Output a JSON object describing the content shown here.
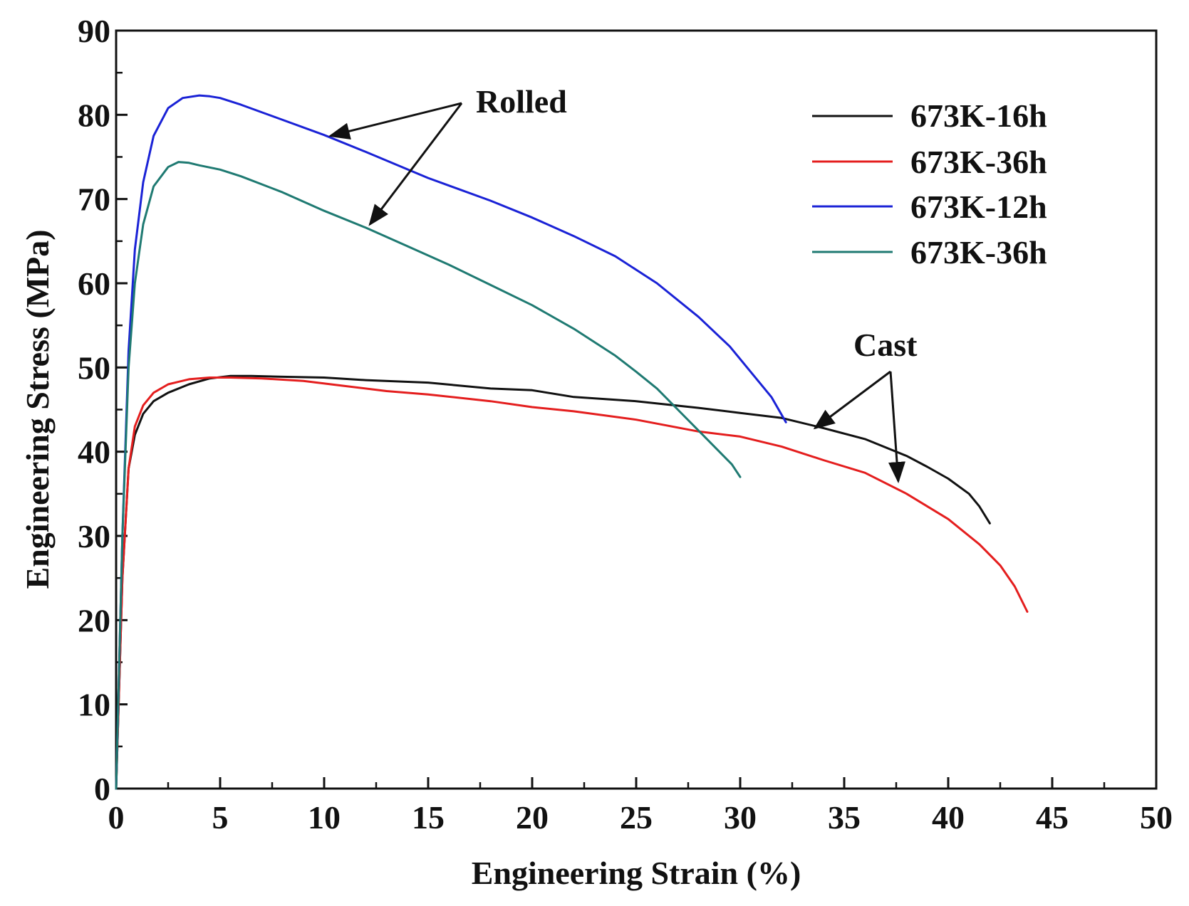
{
  "chart_data": {
    "type": "line",
    "xlabel": "Engineering Strain (%)",
    "ylabel": "Engineering Stress (MPa)",
    "xlim": [
      0,
      50
    ],
    "ylim": [
      0,
      90
    ],
    "xticks": [
      0,
      5,
      10,
      15,
      20,
      25,
      30,
      35,
      40,
      45,
      50
    ],
    "yticks": [
      0,
      10,
      20,
      30,
      40,
      50,
      60,
      70,
      80,
      90
    ],
    "grid": false,
    "legend_position": "top-right",
    "series": [
      {
        "name": "673K-16h",
        "color": "#111111",
        "group": "Cast",
        "x": [
          0,
          0.3,
          0.6,
          0.9,
          1.3,
          1.8,
          2.5,
          3.5,
          4.5,
          5.5,
          6.5,
          8,
          10,
          12,
          15,
          18,
          20,
          22,
          25,
          28,
          30,
          32,
          34,
          36,
          38,
          39,
          40,
          41,
          41.5,
          42
        ],
        "y": [
          0,
          25,
          38,
          42,
          44.5,
          46,
          47,
          48,
          48.7,
          49,
          49,
          48.9,
          48.8,
          48.5,
          48.2,
          47.5,
          47.3,
          46.5,
          46,
          45.2,
          44.6,
          44,
          42.8,
          41.5,
          39.5,
          38.2,
          36.8,
          35,
          33.5,
          31.5
        ]
      },
      {
        "name": "673K-36h",
        "color": "#e41e1e",
        "group": "Cast",
        "x": [
          0,
          0.3,
          0.6,
          0.9,
          1.3,
          1.8,
          2.5,
          3.5,
          4.5,
          5.5,
          7,
          9,
          11,
          13,
          15,
          18,
          20,
          22,
          25,
          28,
          30,
          32,
          34,
          36,
          38,
          40,
          41.5,
          42.5,
          43.2,
          43.8
        ],
        "y": [
          0,
          25,
          38,
          43,
          45.5,
          47,
          48,
          48.6,
          48.8,
          48.8,
          48.7,
          48.4,
          47.8,
          47.2,
          46.8,
          46,
          45.3,
          44.8,
          43.8,
          42.4,
          41.8,
          40.6,
          39,
          37.5,
          35,
          32,
          29,
          26.5,
          24,
          21
        ]
      },
      {
        "name": "673K-12h",
        "color": "#1a22d6",
        "group": "Rolled",
        "x": [
          0,
          0.3,
          0.6,
          0.9,
          1.3,
          1.8,
          2.5,
          3.2,
          4,
          4.5,
          5,
          6,
          8,
          10,
          12,
          15,
          18,
          20,
          22,
          24,
          26,
          28,
          29.5,
          30.5,
          31.5,
          32.2
        ],
        "y": [
          0,
          30,
          52,
          64,
          72,
          77.5,
          80.8,
          82,
          82.3,
          82.2,
          82,
          81.2,
          79.4,
          77.6,
          75.6,
          72.5,
          69.8,
          67.8,
          65.6,
          63.2,
          60,
          56,
          52.5,
          49.5,
          46.5,
          43.5
        ]
      },
      {
        "name": "673K-36h",
        "color": "#1f7a72",
        "group": "Rolled",
        "x": [
          0,
          0.3,
          0.6,
          0.9,
          1.3,
          1.8,
          2.5,
          3,
          3.5,
          4,
          5,
          6,
          8,
          10,
          12,
          14,
          16,
          18,
          20,
          22,
          24,
          25,
          26,
          27,
          28,
          29,
          29.6,
          30
        ],
        "y": [
          0,
          30,
          50,
          60,
          67,
          71.5,
          73.8,
          74.4,
          74.3,
          74,
          73.5,
          72.7,
          70.8,
          68.6,
          66.6,
          64.4,
          62.2,
          59.8,
          57.4,
          54.6,
          51.4,
          49.5,
          47.5,
          45,
          42.5,
          40,
          38.5,
          37
        ]
      }
    ],
    "annotations": [
      {
        "text": "Rolled",
        "arrows_to": [
          [
            10.3,
            77.5
          ],
          [
            12.2,
            67
          ]
        ]
      },
      {
        "text": "Cast",
        "arrows_to": [
          [
            33.6,
            42.8
          ],
          [
            37.6,
            36.5
          ]
        ]
      }
    ]
  }
}
